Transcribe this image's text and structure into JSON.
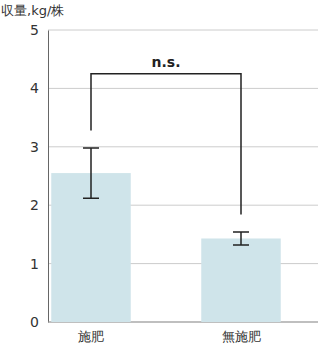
{
  "chart_data": {
    "type": "bar",
    "y_label": "収量,kg/株",
    "categories": [
      "施肥",
      "無施肥"
    ],
    "values": [
      2.55,
      1.43
    ],
    "errors": [
      0.43,
      0.11
    ],
    "color": "#cfe4ea",
    "ylim": [
      0,
      5
    ],
    "yticks": [
      0,
      1,
      2,
      3,
      4,
      5
    ],
    "grid": true,
    "annotations": [
      {
        "text": "n.s.",
        "between": [
          0,
          1
        ],
        "y": 4.25
      }
    ]
  }
}
